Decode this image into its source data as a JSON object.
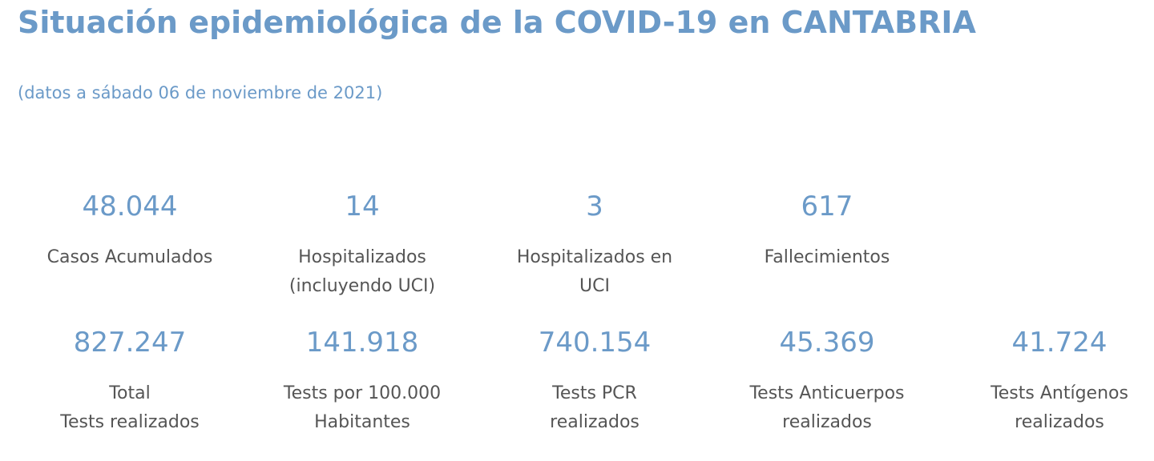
{
  "header": {
    "title": "Situación epidemiológica de la COVID-19 en CANTABRIA",
    "date_note": "(datos a sábado 06 de noviembre de 2021)"
  },
  "stats_row1": [
    {
      "value": "48.044",
      "label_lines": [
        "Casos Acumulados"
      ]
    },
    {
      "value": "14",
      "label_lines": [
        "Hospitalizados",
        "(incluyendo UCI)"
      ]
    },
    {
      "value": "3",
      "label_lines": [
        "Hospitalizados en",
        "UCI"
      ]
    },
    {
      "value": "617",
      "label_lines": [
        "Fallecimientos"
      ]
    }
  ],
  "stats_row2": [
    {
      "value": "827.247",
      "label_lines": [
        "Total",
        "Tests realizados"
      ]
    },
    {
      "value": "141.918",
      "label_lines": [
        "Tests por 100.000",
        "Habitantes"
      ]
    },
    {
      "value": "740.154",
      "label_lines": [
        "Tests PCR",
        "realizados"
      ]
    },
    {
      "value": "45.369",
      "label_lines": [
        "Tests Anticuerpos",
        "realizados"
      ]
    },
    {
      "value": "41.724",
      "label_lines": [
        "Tests Antígenos",
        "realizados"
      ]
    }
  ],
  "colors": {
    "accent": "#6b9ac8",
    "label_text": "#555555"
  }
}
